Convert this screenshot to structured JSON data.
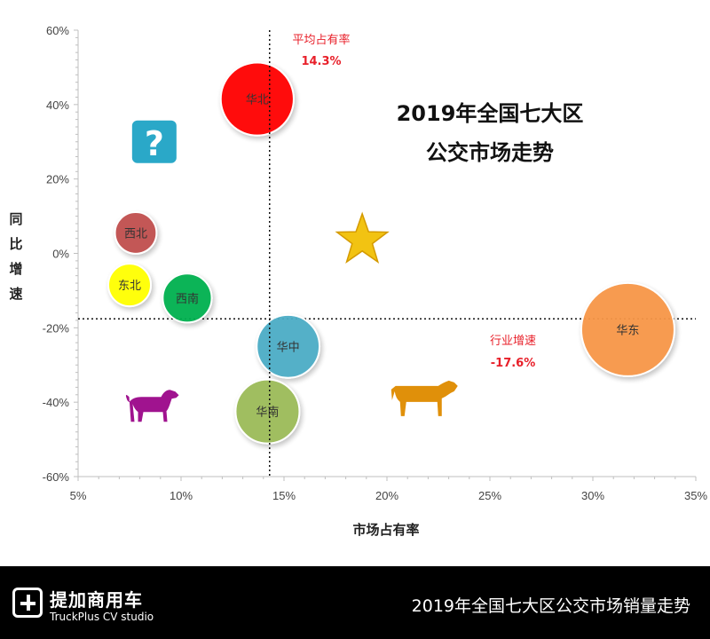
{
  "chart_data": {
    "type": "bubble",
    "title_lines": [
      "2019年全国七大区",
      "公交市场走势"
    ],
    "xlabel": "市场占有率",
    "ylabel": "同比增速",
    "xlim": [
      0.05,
      0.35
    ],
    "ylim": [
      -0.6,
      0.6
    ],
    "x_ticks": [
      "5%",
      "10%",
      "15%",
      "20%",
      "25%",
      "30%",
      "35%"
    ],
    "y_ticks": [
      "60%",
      "40%",
      "20%",
      "0%",
      "-20%",
      "-40%",
      "-60%"
    ],
    "series": [
      {
        "name": "华北",
        "x": 0.137,
        "y": 0.415,
        "size": 0.137,
        "color": "#ff0000"
      },
      {
        "name": "西北",
        "x": 0.078,
        "y": 0.055,
        "size": 0.078,
        "color": "#c0504d"
      },
      {
        "name": "东北",
        "x": 0.075,
        "y": -0.085,
        "size": 0.08,
        "color": "#ffff00"
      },
      {
        "name": "西南",
        "x": 0.103,
        "y": -0.12,
        "size": 0.092,
        "color": "#00b050"
      },
      {
        "name": "华中",
        "x": 0.152,
        "y": -0.25,
        "size": 0.118,
        "color": "#4bacc6"
      },
      {
        "name": "华南",
        "x": 0.142,
        "y": -0.425,
        "size": 0.12,
        "color": "#9bbb59"
      },
      {
        "name": "华东",
        "x": 0.317,
        "y": -0.205,
        "size": 0.175,
        "color": "#f79646"
      }
    ],
    "reference_lines": {
      "avg_share": {
        "label": "平均占有率",
        "value": 0.143,
        "value_text": "14.3%"
      },
      "industry_growth": {
        "label": "行业增速",
        "value": -0.176,
        "value_text": "-17.6%"
      }
    },
    "decorations": [
      {
        "icon": "question-mark-icon",
        "x": 0.087,
        "y": 0.3,
        "color": "#2aa8c8"
      },
      {
        "icon": "star-icon",
        "x": 0.188,
        "y": 0.035,
        "color": "#f2c312"
      },
      {
        "icon": "dog-icon",
        "x": 0.086,
        "y": -0.405,
        "color": "#a0138f"
      },
      {
        "icon": "cow-icon",
        "x": 0.218,
        "y": -0.385,
        "color": "#e0900a"
      }
    ]
  },
  "footer": {
    "brand_cn": "提加商用车",
    "brand_en": "TruckPlus CV studio",
    "caption": "2019年全国七大区公交市场销量走势"
  }
}
